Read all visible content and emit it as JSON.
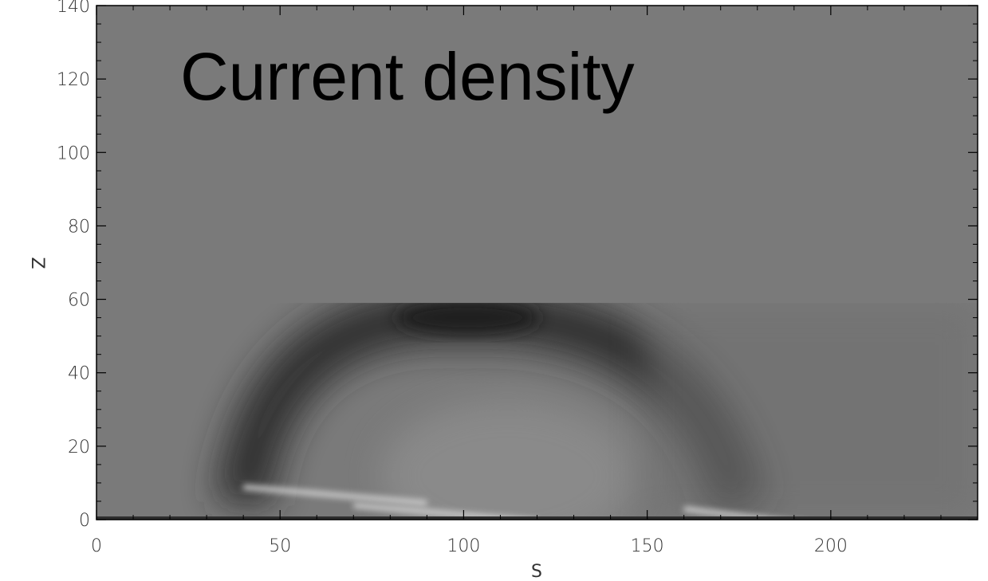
{
  "chart_data": {
    "type": "heatmap",
    "title": "Current density",
    "xlabel": "S",
    "ylabel": "Z",
    "xlim": [
      0,
      240
    ],
    "ylim": [
      0,
      140
    ],
    "x_ticks": [
      0,
      50,
      100,
      150,
      200
    ],
    "y_ticks": [
      0,
      20,
      40,
      60,
      80,
      100,
      120,
      140
    ],
    "x_tick_labels": [
      "0",
      "50",
      "100",
      "150",
      "200"
    ],
    "y_tick_labels": [
      "0",
      "20",
      "40",
      "60",
      "80",
      "100",
      "120",
      "140"
    ],
    "colormap": "grayscale",
    "grid": false,
    "background_gray": "#7a7a7a",
    "features": {
      "dark_arch": {
        "shade": "#1a1a1a",
        "crest_s": 100,
        "crest_z": 55,
        "left_foot_s": 40,
        "right_foot_s": 175,
        "top_cut_z": 59
      },
      "bright_streaks": [
        {
          "s_start": 40,
          "s_end": 90,
          "z": 8
        },
        {
          "s_start": 70,
          "s_end": 120,
          "z": 3
        },
        {
          "s_start": 160,
          "s_end": 195,
          "z": 2
        }
      ]
    }
  }
}
